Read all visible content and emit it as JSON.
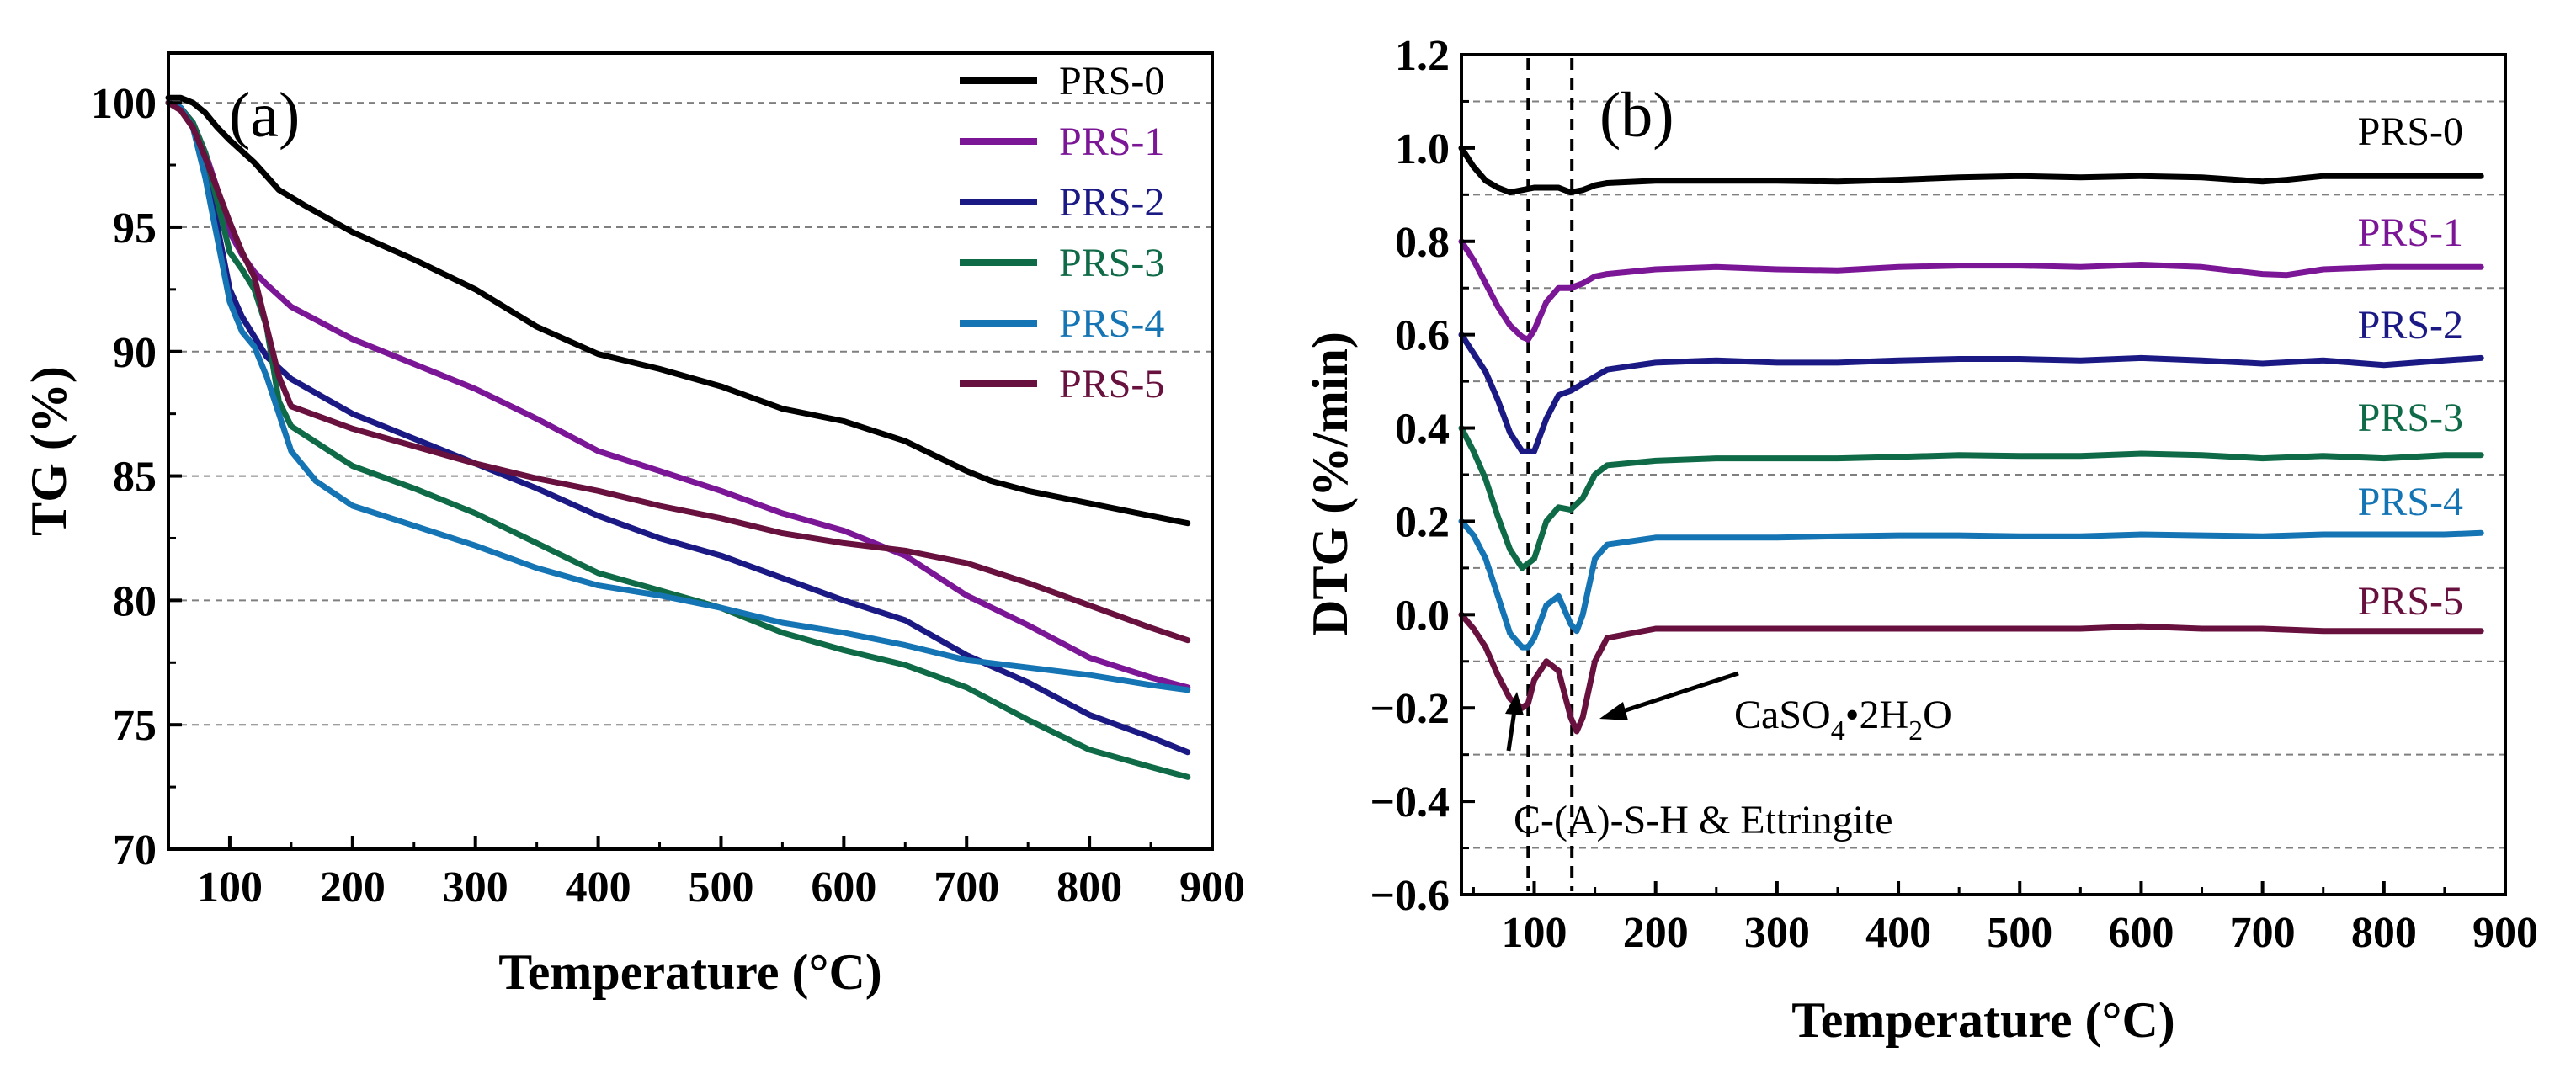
{
  "chart_data": [
    {
      "type": "line",
      "panel_label": "(a)",
      "xlabel": "Temperature (°C)",
      "ylabel": "TG (%)",
      "xlim": [
        50,
        900
      ],
      "ylim": [
        70,
        102
      ],
      "xticks": [
        100,
        200,
        300,
        400,
        500,
        600,
        700,
        800,
        900
      ],
      "yticks": [
        70,
        75,
        80,
        85,
        90,
        95,
        100
      ],
      "grid": "horizontal dashed",
      "legend_position": "top-right",
      "series": [
        {
          "name": "PRS-0",
          "color": "#000000",
          "x": [
            50,
            60,
            70,
            80,
            90,
            100,
            120,
            140,
            160,
            200,
            250,
            300,
            350,
            400,
            450,
            500,
            550,
            600,
            650,
            700,
            720,
            750,
            800,
            850,
            880
          ],
          "y": [
            100.2,
            100.2,
            100.0,
            99.6,
            99.0,
            98.5,
            97.6,
            96.5,
            95.9,
            94.8,
            93.7,
            92.5,
            91.0,
            89.9,
            89.3,
            88.6,
            87.7,
            87.2,
            86.4,
            85.2,
            84.8,
            84.4,
            83.9,
            83.4,
            83.1
          ]
        },
        {
          "name": "PRS-1",
          "color": "#7b1796",
          "x": [
            50,
            60,
            70,
            80,
            90,
            100,
            110,
            120,
            130,
            150,
            200,
            250,
            300,
            350,
            400,
            450,
            500,
            550,
            600,
            650,
            700,
            750,
            800,
            850,
            880
          ],
          "y": [
            100.0,
            99.8,
            99.2,
            98.0,
            96.5,
            94.8,
            93.9,
            93.2,
            92.7,
            91.8,
            90.5,
            89.5,
            88.5,
            87.3,
            86.0,
            85.2,
            84.4,
            83.5,
            82.8,
            81.8,
            80.2,
            79.0,
            77.7,
            76.9,
            76.5
          ]
        },
        {
          "name": "PRS-2",
          "color": "#1b1a85",
          "x": [
            50,
            60,
            70,
            80,
            90,
            100,
            110,
            120,
            130,
            150,
            200,
            250,
            300,
            350,
            400,
            450,
            500,
            550,
            600,
            650,
            700,
            750,
            800,
            850,
            880
          ],
          "y": [
            100.0,
            99.8,
            99.0,
            97.5,
            95.0,
            92.5,
            91.4,
            90.6,
            89.8,
            88.9,
            87.5,
            86.5,
            85.5,
            84.5,
            83.4,
            82.5,
            81.8,
            80.9,
            80.0,
            79.2,
            77.8,
            76.7,
            75.4,
            74.5,
            73.9
          ]
        },
        {
          "name": "PRS-3",
          "color": "#0f6a47",
          "x": [
            50,
            60,
            70,
            80,
            90,
            100,
            110,
            120,
            130,
            140,
            150,
            200,
            250,
            300,
            350,
            400,
            450,
            500,
            550,
            600,
            650,
            700,
            750,
            800,
            850,
            880
          ],
          "y": [
            100.0,
            99.8,
            99.2,
            98.0,
            96.0,
            94.0,
            93.3,
            92.5,
            91.0,
            88.0,
            87.0,
            85.4,
            84.5,
            83.5,
            82.3,
            81.1,
            80.4,
            79.7,
            78.7,
            78.0,
            77.4,
            76.5,
            75.2,
            74.0,
            73.3,
            72.9
          ]
        },
        {
          "name": "PRS-4",
          "color": "#1574b3",
          "x": [
            50,
            60,
            70,
            80,
            90,
            100,
            110,
            120,
            130,
            140,
            150,
            170,
            200,
            250,
            300,
            350,
            400,
            450,
            500,
            550,
            600,
            650,
            700,
            750,
            800,
            850,
            880
          ],
          "y": [
            100.0,
            99.8,
            99.0,
            97.0,
            94.5,
            92.0,
            90.8,
            90.2,
            89.0,
            87.5,
            86.0,
            84.8,
            83.8,
            83.0,
            82.2,
            81.3,
            80.6,
            80.2,
            79.7,
            79.1,
            78.7,
            78.2,
            77.6,
            77.3,
            77.0,
            76.6,
            76.4
          ]
        },
        {
          "name": "PRS-5",
          "color": "#68113f",
          "x": [
            50,
            60,
            70,
            80,
            90,
            100,
            110,
            120,
            130,
            140,
            150,
            200,
            250,
            300,
            350,
            400,
            450,
            500,
            550,
            600,
            650,
            700,
            750,
            800,
            850,
            880
          ],
          "y": [
            100.0,
            99.7,
            99.0,
            97.8,
            96.5,
            95.2,
            94.0,
            93.0,
            91.0,
            89.0,
            87.8,
            86.9,
            86.2,
            85.5,
            84.9,
            84.4,
            83.8,
            83.3,
            82.7,
            82.3,
            82.0,
            81.5,
            80.7,
            79.8,
            78.9,
            78.4
          ]
        }
      ]
    },
    {
      "type": "line",
      "panel_label": "(b)",
      "xlabel": "Temperature (°C)",
      "ylabel": "DTG (%/min)",
      "xlim": [
        40,
        900
      ],
      "ylim": [
        -0.6,
        1.2
      ],
      "xticks": [
        100,
        200,
        300,
        400,
        500,
        600,
        700,
        800,
        900
      ],
      "yticks": [
        -0.6,
        -0.4,
        -0.2,
        0.0,
        0.2,
        0.4,
        0.6,
        0.8,
        1.0,
        1.2
      ],
      "ytick_labels": [
        "−0.6",
        "−0.4",
        "−0.2",
        "0.0",
        "0.2",
        "0.4",
        "0.6",
        "0.8",
        "1.0",
        "1.2"
      ],
      "grid": "horizontal dashed",
      "vertical_markers_x": [
        95,
        131
      ],
      "annotations": [
        {
          "text_main": "C-(A)-S-H & Ettringite"
        },
        {
          "text_parts": [
            "CaSO",
            "4",
            "•2H",
            "2",
            "O"
          ]
        }
      ],
      "series": [
        {
          "name": "PRS-0",
          "color": "#000000",
          "x": [
            40,
            50,
            60,
            70,
            80,
            90,
            100,
            110,
            120,
            130,
            140,
            150,
            160,
            200,
            250,
            300,
            350,
            400,
            450,
            500,
            550,
            600,
            650,
            700,
            720,
            750,
            800,
            850,
            880
          ],
          "y": [
            1.0,
            0.96,
            0.93,
            0.915,
            0.905,
            0.91,
            0.915,
            0.915,
            0.915,
            0.905,
            0.91,
            0.92,
            0.925,
            0.93,
            0.93,
            0.93,
            0.928,
            0.932,
            0.937,
            0.94,
            0.937,
            0.94,
            0.937,
            0.928,
            0.932,
            0.94,
            0.94,
            0.94,
            0.94
          ]
        },
        {
          "name": "PRS-1",
          "color": "#7b1796",
          "x": [
            40,
            50,
            60,
            70,
            80,
            90,
            95,
            100,
            110,
            120,
            130,
            140,
            150,
            160,
            200,
            250,
            300,
            350,
            400,
            450,
            500,
            550,
            600,
            650,
            700,
            720,
            750,
            800,
            850,
            880
          ],
          "y": [
            0.8,
            0.76,
            0.71,
            0.66,
            0.62,
            0.595,
            0.59,
            0.61,
            0.67,
            0.7,
            0.7,
            0.71,
            0.725,
            0.73,
            0.74,
            0.745,
            0.74,
            0.738,
            0.745,
            0.748,
            0.748,
            0.745,
            0.75,
            0.745,
            0.73,
            0.728,
            0.74,
            0.745,
            0.745,
            0.745
          ]
        },
        {
          "name": "PRS-2",
          "color": "#1b1a85",
          "x": [
            40,
            50,
            60,
            70,
            80,
            90,
            100,
            110,
            120,
            130,
            140,
            150,
            160,
            200,
            250,
            300,
            350,
            400,
            450,
            500,
            550,
            600,
            650,
            700,
            750,
            800,
            850,
            880
          ],
          "y": [
            0.6,
            0.56,
            0.52,
            0.46,
            0.39,
            0.35,
            0.35,
            0.42,
            0.47,
            0.48,
            0.495,
            0.51,
            0.525,
            0.54,
            0.545,
            0.54,
            0.54,
            0.545,
            0.548,
            0.548,
            0.545,
            0.55,
            0.545,
            0.538,
            0.545,
            0.535,
            0.545,
            0.55
          ]
        },
        {
          "name": "PRS-3",
          "color": "#0f6a47",
          "x": [
            40,
            50,
            60,
            70,
            80,
            90,
            100,
            110,
            120,
            130,
            140,
            150,
            160,
            200,
            250,
            300,
            350,
            400,
            450,
            500,
            550,
            600,
            650,
            700,
            750,
            800,
            850,
            880
          ],
          "y": [
            0.4,
            0.35,
            0.29,
            0.21,
            0.14,
            0.1,
            0.12,
            0.2,
            0.23,
            0.225,
            0.25,
            0.3,
            0.32,
            0.33,
            0.335,
            0.335,
            0.335,
            0.338,
            0.342,
            0.34,
            0.34,
            0.345,
            0.342,
            0.335,
            0.34,
            0.335,
            0.342,
            0.342
          ]
        },
        {
          "name": "PRS-4",
          "color": "#1574b3",
          "x": [
            40,
            50,
            60,
            70,
            80,
            90,
            95,
            100,
            110,
            120,
            130,
            135,
            140,
            150,
            160,
            200,
            250,
            300,
            350,
            400,
            450,
            500,
            550,
            600,
            650,
            700,
            750,
            800,
            850,
            880
          ],
          "y": [
            0.2,
            0.17,
            0.12,
            0.04,
            -0.04,
            -0.07,
            -0.07,
            -0.05,
            0.02,
            0.04,
            -0.02,
            -0.035,
            0.0,
            0.12,
            0.15,
            0.165,
            0.165,
            0.165,
            0.168,
            0.17,
            0.17,
            0.168,
            0.168,
            0.172,
            0.17,
            0.168,
            0.172,
            0.172,
            0.172,
            0.175
          ]
        },
        {
          "name": "PRS-5",
          "color": "#68113f",
          "x": [
            40,
            50,
            60,
            70,
            80,
            90,
            95,
            100,
            110,
            120,
            130,
            135,
            140,
            150,
            160,
            200,
            250,
            300,
            350,
            400,
            450,
            500,
            550,
            600,
            650,
            700,
            750,
            800,
            850,
            880
          ],
          "y": [
            0.0,
            -0.03,
            -0.07,
            -0.13,
            -0.18,
            -0.2,
            -0.19,
            -0.14,
            -0.1,
            -0.12,
            -0.22,
            -0.25,
            -0.22,
            -0.1,
            -0.05,
            -0.03,
            -0.03,
            -0.03,
            -0.03,
            -0.03,
            -0.03,
            -0.03,
            -0.03,
            -0.025,
            -0.03,
            -0.03,
            -0.035,
            -0.035,
            -0.035,
            -0.035
          ]
        }
      ]
    }
  ]
}
